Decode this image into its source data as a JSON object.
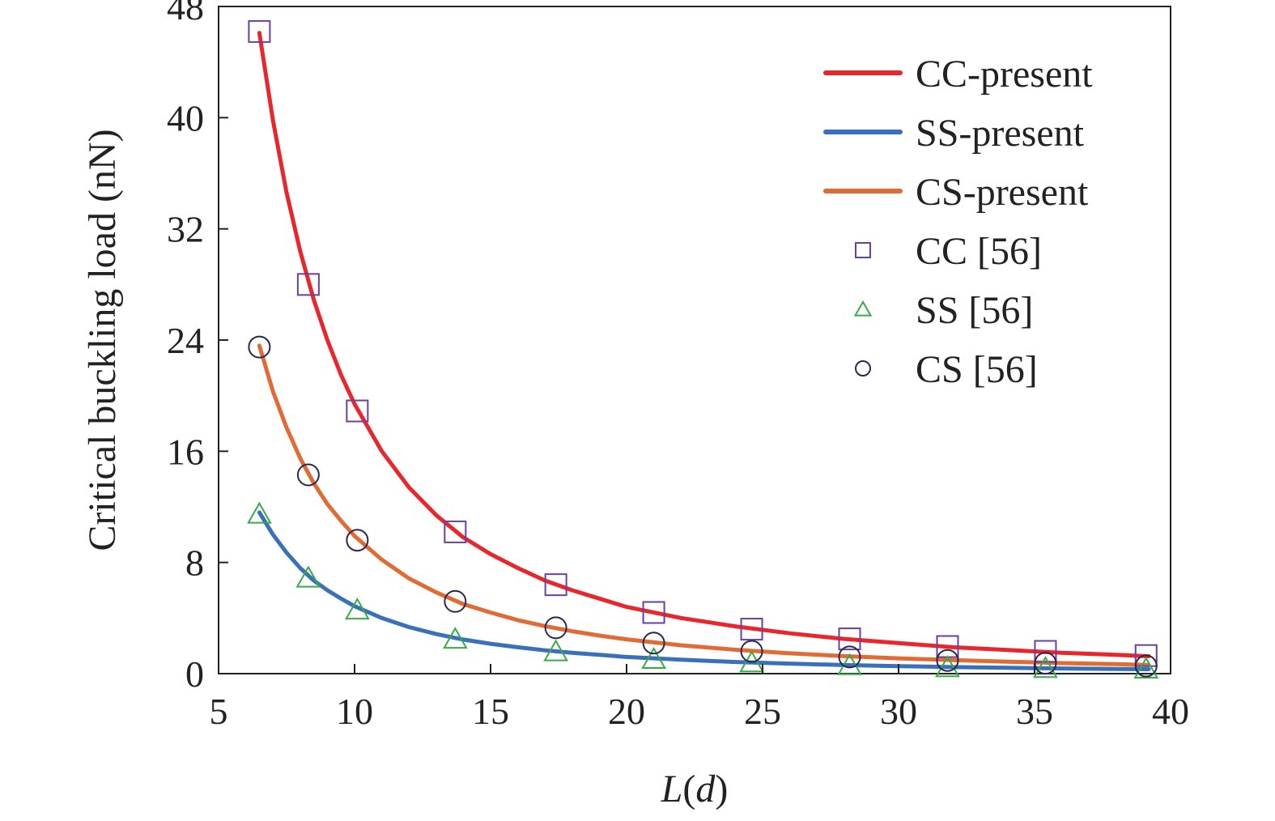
{
  "chart_data": {
    "type": "line",
    "title": "",
    "xlabel": {
      "main": "L",
      "unit": "(d)"
    },
    "ylabel": "Critical buckling load (nN)",
    "xlim": [
      5,
      40
    ],
    "ylim": [
      0,
      48
    ],
    "xticks": [
      5,
      10,
      15,
      20,
      25,
      30,
      35,
      40
    ],
    "yticks": [
      0,
      8,
      16,
      24,
      32,
      40,
      48
    ],
    "grid": false,
    "legend_position": "top-right",
    "series": [
      {
        "name": "CC-present",
        "kind": "line",
        "color": "#e8262b",
        "x": [
          6.5,
          7.0,
          7.5,
          8.0,
          8.5,
          9.0,
          9.5,
          10.0,
          11.0,
          12.0,
          13.0,
          14.0,
          15.0,
          16.0,
          17.0,
          18.0,
          19.0,
          20.0,
          22.0,
          24.0,
          26.0,
          28.0,
          30.0,
          32.0,
          34.0,
          36.0,
          38.0,
          39.2
        ],
        "y": [
          46.1,
          39.8,
          34.6,
          30.4,
          26.9,
          24.0,
          21.5,
          19.4,
          16.0,
          13.4,
          11.4,
          9.8,
          8.6,
          7.6,
          6.7,
          6.0,
          5.4,
          4.8,
          4.0,
          3.4,
          2.9,
          2.5,
          2.2,
          1.9,
          1.7,
          1.5,
          1.35,
          1.25
        ]
      },
      {
        "name": "SS-present",
        "kind": "line",
        "color": "#3a6fba",
        "x": [
          6.5,
          7.0,
          7.5,
          8.0,
          8.5,
          9.0,
          9.5,
          10.0,
          11.0,
          12.0,
          13.0,
          14.0,
          15.0,
          16.0,
          17.0,
          18.0,
          19.0,
          20.0,
          22.0,
          24.0,
          26.0,
          28.0,
          30.0,
          32.0,
          34.0,
          36.0,
          38.0,
          39.2
        ],
        "y": [
          11.6,
          10.0,
          8.7,
          7.6,
          6.7,
          6.0,
          5.4,
          4.85,
          4.0,
          3.35,
          2.85,
          2.45,
          2.15,
          1.9,
          1.68,
          1.5,
          1.35,
          1.2,
          1.0,
          0.84,
          0.72,
          0.62,
          0.54,
          0.47,
          0.42,
          0.37,
          0.34,
          0.32
        ]
      },
      {
        "name": "CS-present",
        "kind": "line",
        "color": "#e06b35",
        "x": [
          6.5,
          7.0,
          7.5,
          8.0,
          8.5,
          9.0,
          9.5,
          10.0,
          11.0,
          12.0,
          13.0,
          14.0,
          15.0,
          16.0,
          17.0,
          18.0,
          19.0,
          20.0,
          22.0,
          24.0,
          26.0,
          28.0,
          30.0,
          32.0,
          34.0,
          36.0,
          38.0,
          39.2
        ],
        "y": [
          23.6,
          20.3,
          17.7,
          15.5,
          13.7,
          12.2,
          11.0,
          9.9,
          8.2,
          6.85,
          5.85,
          5.0,
          4.4,
          3.85,
          3.42,
          3.05,
          2.74,
          2.47,
          2.04,
          1.72,
          1.46,
          1.26,
          1.1,
          0.97,
          0.86,
          0.76,
          0.68,
          0.63
        ]
      },
      {
        "name": "CC [56]",
        "kind": "marker",
        "marker": "square",
        "color": "#6b3fa0",
        "x": [
          6.5,
          8.3,
          10.1,
          13.7,
          17.4,
          21.0,
          24.6,
          28.2,
          31.8,
          35.4,
          39.1
        ],
        "y": [
          46.2,
          28.0,
          18.9,
          10.2,
          6.4,
          4.4,
          3.2,
          2.5,
          1.95,
          1.6,
          1.3
        ]
      },
      {
        "name": "SS [56]",
        "kind": "marker",
        "marker": "triangle",
        "color": "#3aaa48",
        "x": [
          6.5,
          8.3,
          10.1,
          13.7,
          17.4,
          21.0,
          24.6,
          28.2,
          31.8,
          35.4,
          39.1
        ],
        "y": [
          11.5,
          6.9,
          4.6,
          2.5,
          1.6,
          1.05,
          0.8,
          0.6,
          0.45,
          0.4,
          0.35
        ]
      },
      {
        "name": "CS [56]",
        "kind": "marker",
        "marker": "circle",
        "color": "#2a2850",
        "x": [
          6.5,
          8.3,
          10.1,
          13.7,
          17.4,
          21.0,
          24.6,
          28.2,
          31.8,
          35.4,
          39.1
        ],
        "y": [
          23.5,
          14.3,
          9.6,
          5.2,
          3.3,
          2.2,
          1.6,
          1.2,
          0.95,
          0.75,
          0.55
        ]
      }
    ]
  }
}
